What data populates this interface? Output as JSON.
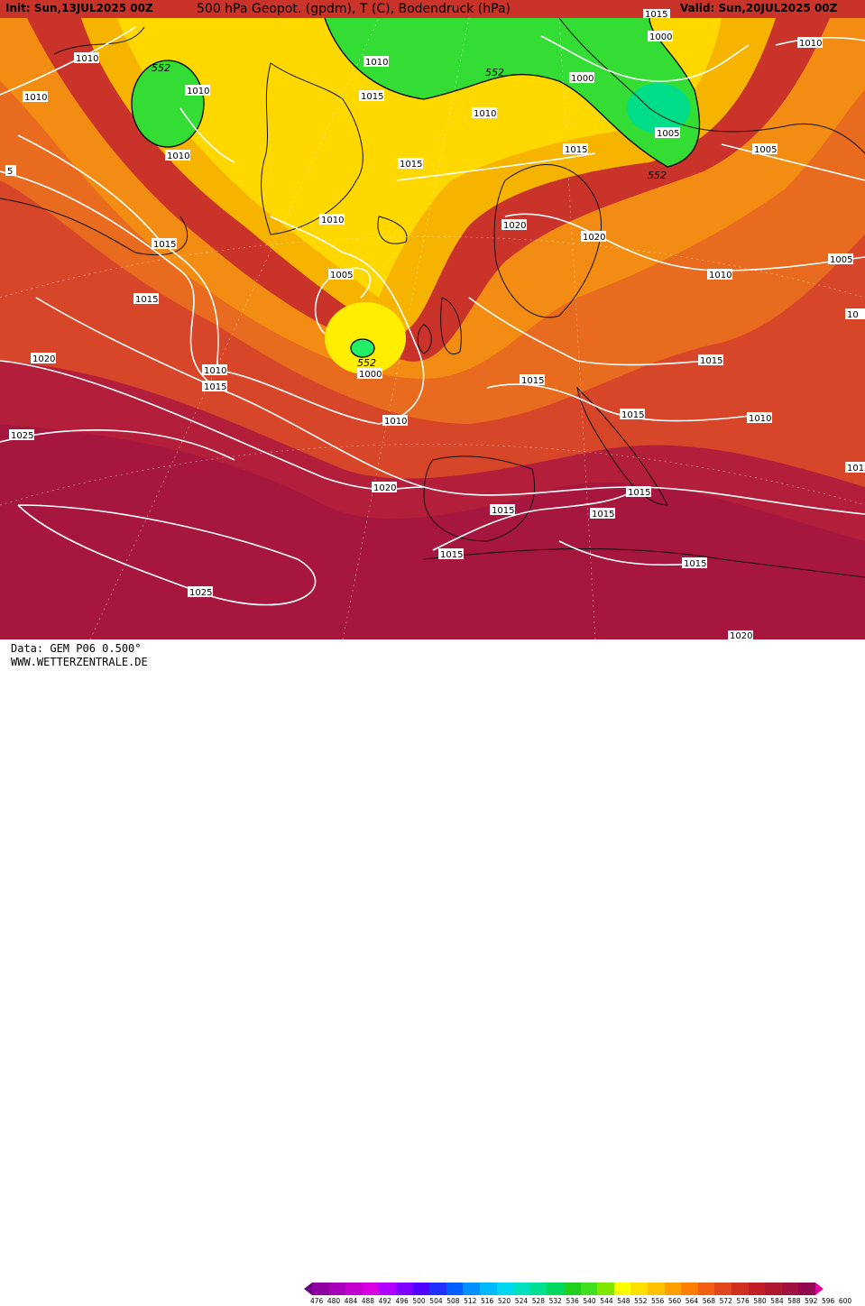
{
  "header": {
    "init": "Init: Sun,13JUL2025 00Z",
    "title": "500 hPa Geopot. (gpdm), T (C), Bodendruck (hPa)",
    "valid": "Valid: Sun,20JUL2025 00Z"
  },
  "footer": {
    "data_source": "Data: GEM P06 0.500°",
    "website": "WWW.WETTERZENTRALE.DE"
  },
  "colors": {
    "ocean_red": "#c9332a",
    "deep_red": "#a7163f",
    "crimson": "#b31f3a",
    "orange_red": "#d8462a",
    "orange": "#e86b1f",
    "light_orange": "#f28c12",
    "amber": "#f6b400",
    "yellow": "#ffd800",
    "bright_yellow": "#ffee00",
    "green": "#33dd33",
    "green_light": "#22ee66",
    "teal": "#00dd88"
  },
  "scale": {
    "values": [
      "476",
      "480",
      "484",
      "488",
      "492",
      "496",
      "500",
      "504",
      "508",
      "512",
      "516",
      "520",
      "524",
      "528",
      "532",
      "536",
      "540",
      "544",
      "548",
      "552",
      "556",
      "560",
      "564",
      "568",
      "572",
      "576",
      "580",
      "584",
      "588",
      "592",
      "596",
      "600"
    ],
    "colors": [
      "#6a0080",
      "#8c00a0",
      "#a800b8",
      "#c400d0",
      "#d800e0",
      "#b000ff",
      "#8000ff",
      "#5000ff",
      "#2030ff",
      "#0060ff",
      "#0090ff",
      "#00b8ff",
      "#00d8f0",
      "#00e0c0",
      "#00e090",
      "#00d860",
      "#20d020",
      "#40e020",
      "#80e800",
      "#ffff00",
      "#ffe000",
      "#ffc000",
      "#ffa000",
      "#ff8000",
      "#f06010",
      "#e04820",
      "#d03020",
      "#c02028",
      "#b01830",
      "#a01040",
      "#900850",
      "#e000a0"
    ]
  },
  "labels": {
    "isobars": [
      {
        "text": "1010",
        "id": "iso-1"
      },
      {
        "text": "1010",
        "id": "iso-2"
      },
      {
        "text": "1010",
        "id": "iso-3"
      },
      {
        "text": "1010",
        "id": "iso-4"
      },
      {
        "text": "1015",
        "id": "iso-5"
      },
      {
        "text": "1015",
        "id": "iso-6"
      },
      {
        "text": "1015",
        "id": "iso-7"
      },
      {
        "text": "1015",
        "id": "iso-8"
      },
      {
        "text": "1010",
        "id": "iso-9"
      },
      {
        "text": "1005",
        "id": "iso-10"
      },
      {
        "text": "1000",
        "id": "iso-11"
      },
      {
        "text": "1010",
        "id": "iso-12"
      },
      {
        "text": "1015",
        "id": "iso-13"
      },
      {
        "text": "1020",
        "id": "iso-14"
      },
      {
        "text": "1020",
        "id": "iso-15"
      },
      {
        "text": "1015",
        "id": "iso-16"
      },
      {
        "text": "1010",
        "id": "iso-17"
      },
      {
        "text": "1020",
        "id": "iso-18"
      },
      {
        "text": "1025",
        "id": "iso-19"
      },
      {
        "text": "1020",
        "id": "iso-20"
      },
      {
        "text": "1025",
        "id": "iso-21"
      },
      {
        "text": "1000",
        "id": "iso-22"
      },
      {
        "text": "1000",
        "id": "iso-23"
      },
      {
        "text": "1005",
        "id": "iso-24"
      },
      {
        "text": "1015",
        "id": "iso-25"
      },
      {
        "text": "1010",
        "id": "iso-26"
      },
      {
        "text": "1005",
        "id": "iso-27"
      },
      {
        "text": "1010",
        "id": "iso-28"
      },
      {
        "text": "1005",
        "id": "iso-29"
      },
      {
        "text": "1015",
        "id": "iso-30"
      },
      {
        "text": "1015",
        "id": "iso-31"
      },
      {
        "text": "1010",
        "id": "iso-32"
      },
      {
        "text": "1015",
        "id": "iso-33"
      },
      {
        "text": "1015",
        "id": "iso-34"
      },
      {
        "text": "1015",
        "id": "iso-35"
      },
      {
        "text": "1015",
        "id": "iso-36"
      },
      {
        "text": "1015",
        "id": "iso-37"
      },
      {
        "text": "1010",
        "id": "iso-38"
      },
      {
        "text": "1010",
        "id": "iso-39"
      },
      {
        "text": "1020",
        "id": "iso-40"
      },
      {
        "text": "10",
        "id": "iso-41"
      },
      {
        "text": "5",
        "id": "iso-42"
      },
      {
        "text": "1015",
        "id": "iso-43"
      },
      {
        "text": "1015",
        "id": "iso-44"
      },
      {
        "text": "1010",
        "id": "iso-45"
      }
    ],
    "geopot": [
      {
        "text": "552",
        "id": "gp-1"
      },
      {
        "text": "552",
        "id": "gp-2"
      },
      {
        "text": "552",
        "id": "gp-3"
      },
      {
        "text": "552",
        "id": "gp-4"
      }
    ]
  }
}
